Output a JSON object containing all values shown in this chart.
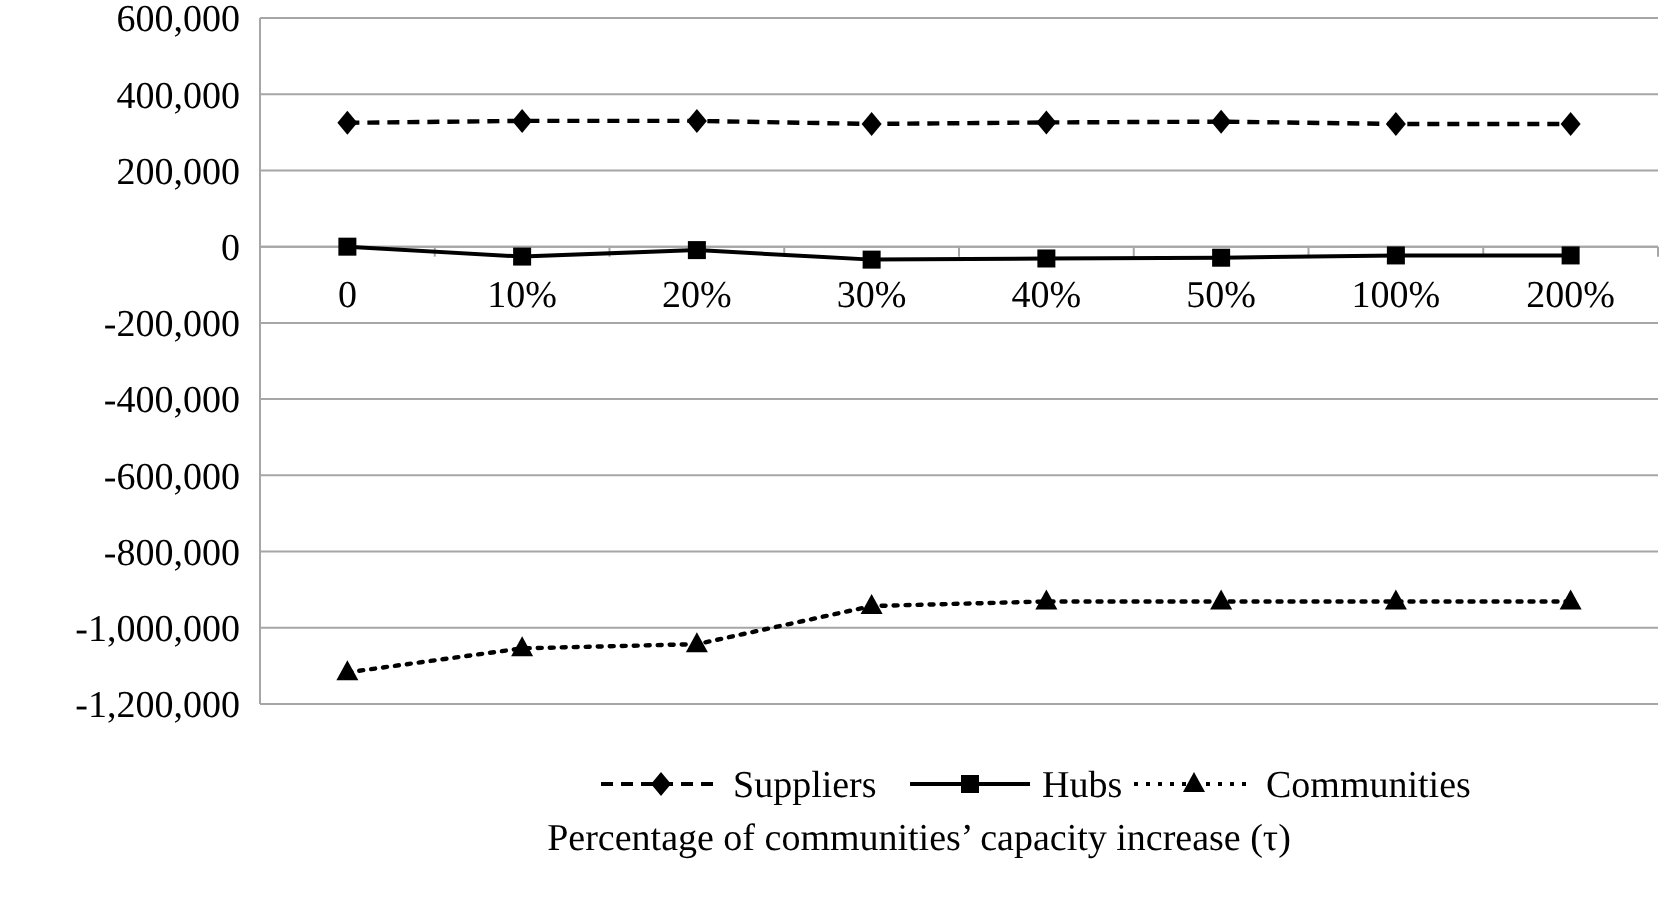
{
  "chart_data": {
    "type": "line",
    "xlabel": "Percentage of communities’ capacity increase (τ)",
    "categories": [
      "0",
      "10%",
      "20%",
      "30%",
      "40%",
      "50%",
      "100%",
      "200%"
    ],
    "series": [
      {
        "name": "Suppliers",
        "color": "#000000",
        "line_style": "dashed",
        "marker": "diamond",
        "values": [
          325000,
          330000,
          330000,
          322000,
          326000,
          328000,
          322000,
          322000
        ]
      },
      {
        "name": "Hubs",
        "color": "#000000",
        "line_style": "solid",
        "marker": "square",
        "values": [
          0,
          -26000,
          -9000,
          -34000,
          -31000,
          -29000,
          -23000,
          -23000
        ]
      },
      {
        "name": "Communities",
        "color": "#000000",
        "line_style": "dotted",
        "marker": "triangle",
        "values": [
          -1117000,
          -1054000,
          -1043000,
          -943000,
          -931000,
          -931000,
          -931000,
          -931000
        ]
      }
    ],
    "ylim": [
      -1200000,
      600000
    ],
    "yticks": [
      {
        "value": -1200000,
        "label": "-1,200,000"
      },
      {
        "value": -1000000,
        "label": "-1,000,000"
      },
      {
        "value": -800000,
        "label": "-800,000"
      },
      {
        "value": -600000,
        "label": "-600,000"
      },
      {
        "value": -400000,
        "label": "-400,000"
      },
      {
        "value": -200000,
        "label": "-200,000"
      },
      0,
      {
        "value": 200000,
        "label": "200,000"
      },
      {
        "value": 400000,
        "label": "400,000"
      },
      {
        "value": 600000,
        "label": "600,000"
      }
    ],
    "grid": "y",
    "legend": "bottom"
  }
}
